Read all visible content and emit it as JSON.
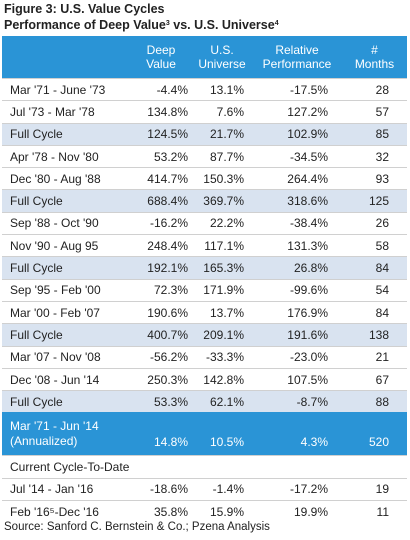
{
  "figure": {
    "title": "Figure 3: U.S. Value Cycles",
    "subtitle_pre": "Performance of Deep Value",
    "subtitle_sup1": "3",
    "subtitle_mid": " vs. U.S. Universe",
    "subtitle_sup2": "4"
  },
  "headers": [
    "",
    "Deep\nValue",
    "U.S.\nUniverse",
    "Relative\nPerformance",
    "#\nMonths"
  ],
  "rows": [
    {
      "period": "Mar '71 - June '73",
      "deep": "-4.4%",
      "univ": "13.1%",
      "rel": "-17.5%",
      "months": "28",
      "kind": "normal"
    },
    {
      "period": "Jul '73 - Mar '78",
      "deep": "134.8%",
      "univ": "7.6%",
      "rel": "127.2%",
      "months": "57",
      "kind": "normal"
    },
    {
      "period": "Full Cycle",
      "deep": "124.5%",
      "univ": "21.7%",
      "rel": "102.9%",
      "months": "85",
      "kind": "full"
    },
    {
      "period": "Apr '78 - Nov '80",
      "deep": "53.2%",
      "univ": "87.7%",
      "rel": "-34.5%",
      "months": "32",
      "kind": "normal"
    },
    {
      "period": "Dec '80 - Aug '88",
      "deep": "414.7%",
      "univ": "150.3%",
      "rel": "264.4%",
      "months": "93",
      "kind": "normal"
    },
    {
      "period": "Full Cycle",
      "deep": "688.4%",
      "univ": "369.7%",
      "rel": "318.6%",
      "months": "125",
      "kind": "full"
    },
    {
      "period": "Sep '88 - Oct '90",
      "deep": "-16.2%",
      "univ": "22.2%",
      "rel": "-38.4%",
      "months": "26",
      "kind": "normal"
    },
    {
      "period": "Nov '90 - Aug 95",
      "deep": "248.4%",
      "univ": "117.1%",
      "rel": "131.3%",
      "months": "58",
      "kind": "normal"
    },
    {
      "period": "Full Cycle",
      "deep": "192.1%",
      "univ": "165.3%",
      "rel": "26.8%",
      "months": "84",
      "kind": "full"
    },
    {
      "period": "Sep '95 - Feb '00",
      "deep": "72.3%",
      "univ": "171.9%",
      "rel": "-99.6%",
      "months": "54",
      "kind": "normal"
    },
    {
      "period": "Mar '00 - Feb '07",
      "deep": "190.6%",
      "univ": "13.7%",
      "rel": "176.9%",
      "months": "84",
      "kind": "normal"
    },
    {
      "period": "Full Cycle",
      "deep": "400.7%",
      "univ": "209.1%",
      "rel": "191.6%",
      "months": "138",
      "kind": "full"
    },
    {
      "period": "Mar '07 - Nov '08",
      "deep": "-56.2%",
      "univ": "-33.3%",
      "rel": "-23.0%",
      "months": "21",
      "kind": "normal"
    },
    {
      "period": "Dec '08 - Jun '14",
      "deep": "250.3%",
      "univ": "142.8%",
      "rel": "107.5%",
      "months": "67",
      "kind": "normal"
    },
    {
      "period": "Full Cycle",
      "deep": "53.3%",
      "univ": "62.1%",
      "rel": "-8.7%",
      "months": "88",
      "kind": "full"
    },
    {
      "period": "Mar '71 - Jun '14\n(Annualized)",
      "deep": "14.8%",
      "univ": "10.5%",
      "rel": "4.3%",
      "months": "520",
      "kind": "annual"
    },
    {
      "period": "Current Cycle-To-Date",
      "deep": "",
      "univ": "",
      "rel": "",
      "months": "",
      "kind": "section"
    },
    {
      "period": "Jul '14 - Jan '16",
      "deep": "-18.6%",
      "univ": "-1.4%",
      "rel": "-17.2%",
      "months": "19",
      "kind": "normal"
    },
    {
      "period": "Feb '16⁵-Dec '16",
      "deep": "35.8%",
      "univ": "15.9%",
      "rel": "19.9%",
      "months": "11",
      "kind": "normal"
    }
  ],
  "source": "Source: Sanford C. Bernstein & Co.; Pzena Analysis"
}
